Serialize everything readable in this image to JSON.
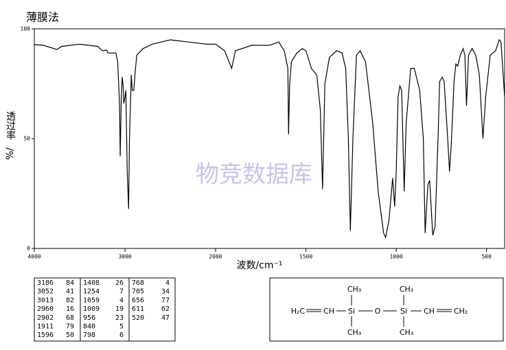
{
  "chart_data": {
    "type": "line",
    "title": "薄膜法",
    "x_label": "波数/cm⁻¹",
    "y_label": "透过率",
    "y_unit": "%/",
    "watermark": "物竞数据库",
    "xlim": [
      4000,
      400
    ],
    "x_scale_break": 2000,
    "xticks": [
      4000,
      3000,
      2000,
      1500,
      1000,
      500
    ],
    "ylim": [
      0,
      100
    ],
    "yticks": [
      0,
      50,
      100
    ],
    "x": [
      4000,
      3900,
      3750,
      3700,
      3600,
      3500,
      3400,
      3300,
      3250,
      3200,
      3186,
      3100,
      3080,
      3060,
      3052,
      3040,
      3030,
      3020,
      3013,
      3000,
      2990,
      2975,
      2960,
      2950,
      2930,
      2920,
      2902,
      2890,
      2870,
      2800,
      2700,
      2500,
      2300,
      2100,
      2000,
      1950,
      1911,
      1890,
      1800,
      1700,
      1650,
      1620,
      1600,
      1596,
      1590,
      1580,
      1550,
      1520,
      1500,
      1470,
      1440,
      1420,
      1408,
      1395,
      1370,
      1330,
      1300,
      1280,
      1265,
      1254,
      1240,
      1220,
      1200,
      1170,
      1130,
      1100,
      1070,
      1059,
      1040,
      1020,
      1009,
      1000,
      990,
      980,
      970,
      956,
      945,
      920,
      900,
      870,
      850,
      840,
      825,
      815,
      798,
      785,
      768,
      760,
      745,
      735,
      715,
      705,
      695,
      680,
      670,
      660,
      645,
      630,
      620,
      611,
      600,
      580,
      560,
      540,
      520,
      505,
      480,
      450,
      430,
      420,
      400
    ],
    "series": [
      {
        "name": "spectrum",
        "color": "#000000",
        "values": [
          92.8,
          92.5,
          90.6,
          92,
          92.5,
          93,
          92.5,
          92,
          90,
          90.3,
          89,
          89,
          85,
          66,
          42,
          69,
          78,
          74,
          66,
          69,
          72,
          35,
          18,
          50,
          79,
          72,
          72,
          79,
          88,
          91,
          93,
          95,
          94,
          93,
          93,
          90,
          82,
          90,
          92.5,
          92.5,
          94,
          90,
          82,
          52,
          75,
          85,
          89,
          91,
          90,
          82,
          79,
          63,
          27,
          75,
          87,
          90,
          89,
          82,
          50,
          8,
          50,
          88,
          90,
          85,
          57,
          26,
          7,
          5,
          13,
          32,
          19,
          35,
          69,
          74,
          72,
          26,
          57,
          82,
          82,
          72,
          50,
          7,
          29,
          31,
          6,
          10,
          52,
          76,
          78,
          76,
          50,
          35,
          48,
          76,
          84,
          83,
          88,
          91,
          88,
          65,
          88,
          91,
          88,
          79,
          50,
          69,
          88,
          90,
          95,
          94,
          69
        ]
      }
    ]
  },
  "table": {
    "columns": [
      [
        [
          "3186",
          "84"
        ],
        [
          "3052",
          "41"
        ],
        [
          "3013",
          "82"
        ],
        [
          "2960",
          "16"
        ],
        [
          "2902",
          "68"
        ],
        [
          "1911",
          "79"
        ],
        [
          "1596",
          "50"
        ]
      ],
      [
        [
          "1408",
          "26"
        ],
        [
          "1254",
          "7"
        ],
        [
          "1059",
          "4"
        ],
        [
          "1009",
          "19"
        ],
        [
          "956",
          "23"
        ],
        [
          "840",
          "5"
        ],
        [
          "798",
          "6"
        ]
      ],
      [
        [
          "768",
          "4"
        ],
        [
          "705",
          "34"
        ],
        [
          "656",
          "77"
        ],
        [
          "611",
          "62"
        ],
        [
          "520",
          "47"
        ]
      ]
    ]
  },
  "structure": {
    "atoms": [
      "H₂C",
      "CH",
      "Si",
      "O",
      "Si",
      "CH",
      "CH₂"
    ],
    "methyls": [
      "CH₃",
      "CH₃",
      "CH₃",
      "CH₃"
    ]
  }
}
